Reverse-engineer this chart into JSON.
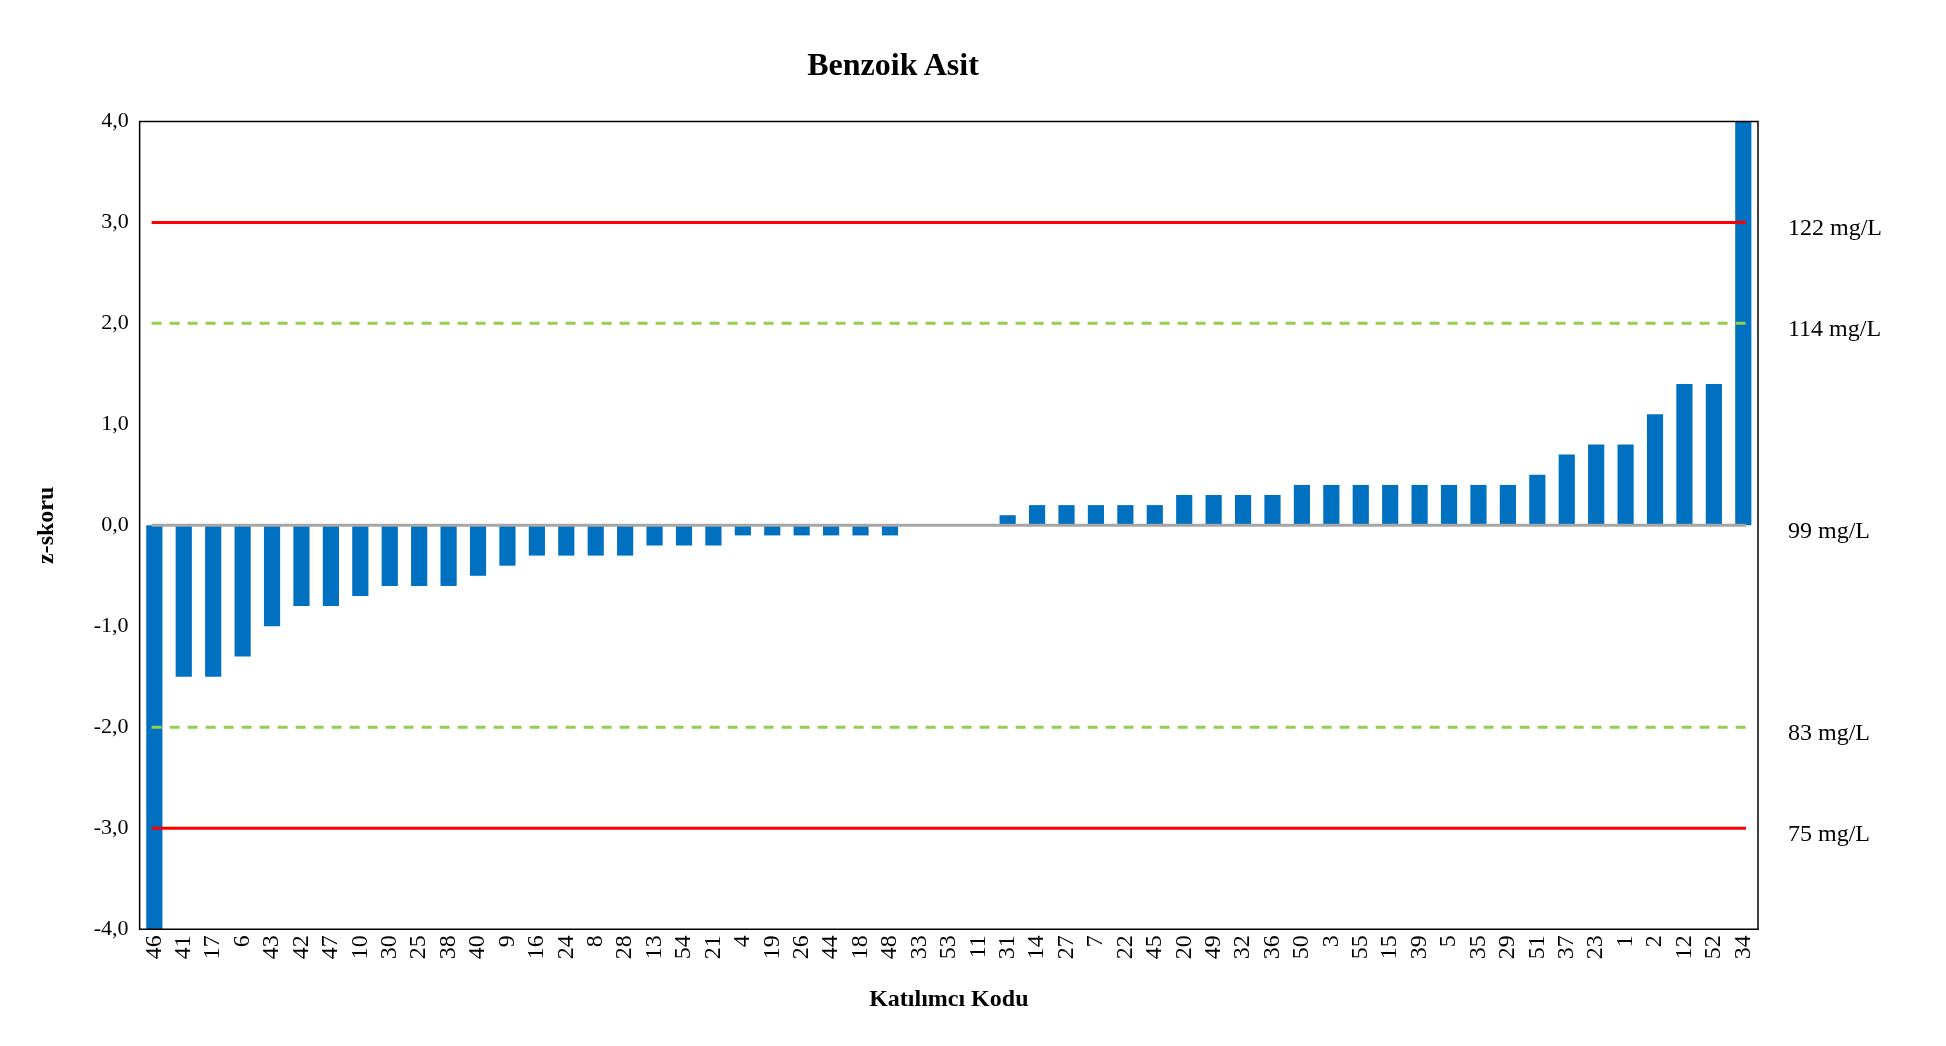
{
  "chart_data": {
    "type": "bar",
    "title": "Benzoik Asit",
    "xlabel": "Katılımcı Kodu",
    "ylabel": "z-skoru",
    "categories": [
      "46",
      "41",
      "17",
      "6",
      "43",
      "42",
      "47",
      "10",
      "30",
      "25",
      "38",
      "40",
      "9",
      "16",
      "24",
      "8",
      "28",
      "13",
      "54",
      "21",
      "4",
      "19",
      "26",
      "44",
      "18",
      "48",
      "33",
      "53",
      "11",
      "31",
      "14",
      "27",
      "7",
      "22",
      "45",
      "20",
      "49",
      "32",
      "36",
      "50",
      "3",
      "55",
      "15",
      "39",
      "5",
      "35",
      "29",
      "51",
      "37",
      "23",
      "1",
      "2",
      "12",
      "52",
      "34"
    ],
    "values": [
      -4.0,
      -1.5,
      -1.5,
      -1.3,
      -1.0,
      -0.8,
      -0.8,
      -0.7,
      -0.6,
      -0.6,
      -0.6,
      -0.5,
      -0.4,
      -0.3,
      -0.3,
      -0.3,
      -0.3,
      -0.2,
      -0.2,
      -0.2,
      -0.1,
      -0.1,
      -0.1,
      -0.1,
      -0.1,
      -0.1,
      0,
      0,
      0,
      0.1,
      0.2,
      0.2,
      0.2,
      0.2,
      0.2,
      0.3,
      0.3,
      0.3,
      0.3,
      0.4,
      0.4,
      0.4,
      0.4,
      0.4,
      0.4,
      0.4,
      0.4,
      0.5,
      0.7,
      0.8,
      0.8,
      1.1,
      1.4,
      1.4,
      4.0
    ],
    "color": "#0070c0",
    "ylim": [
      -4,
      4
    ],
    "yticks": [
      {
        "value": -4,
        "label": "-4,0"
      },
      {
        "value": -3,
        "label": "-3,0"
      },
      {
        "value": -2,
        "label": "-2,0"
      },
      {
        "value": -1,
        "label": "-1,0"
      },
      {
        "value": 0,
        "label": "0,0"
      },
      {
        "value": 1,
        "label": "1,0"
      },
      {
        "value": 2,
        "label": "2,0"
      },
      {
        "value": 3,
        "label": "3,0"
      },
      {
        "value": 4,
        "label": "4,0"
      }
    ],
    "grid": false,
    "legend": false,
    "ref_lines": [
      {
        "axis": "y",
        "value": 3,
        "label": "122 mg/L",
        "color": "#ff0000",
        "line_style": "solid"
      },
      {
        "axis": "y",
        "value": 2,
        "label": "114 mg/L",
        "color": "#92d050",
        "line_style": "dashed"
      },
      {
        "axis": "y",
        "value": 0,
        "label": "99 mg/L",
        "color": "#a6a6a6",
        "line_style": "solid"
      },
      {
        "axis": "y",
        "value": -2,
        "label": "83 mg/L",
        "color": "#92d050",
        "line_style": "dashed"
      },
      {
        "axis": "y",
        "value": -3,
        "label": "75 mg/L",
        "color": "#ff0000",
        "line_style": "solid"
      }
    ]
  }
}
